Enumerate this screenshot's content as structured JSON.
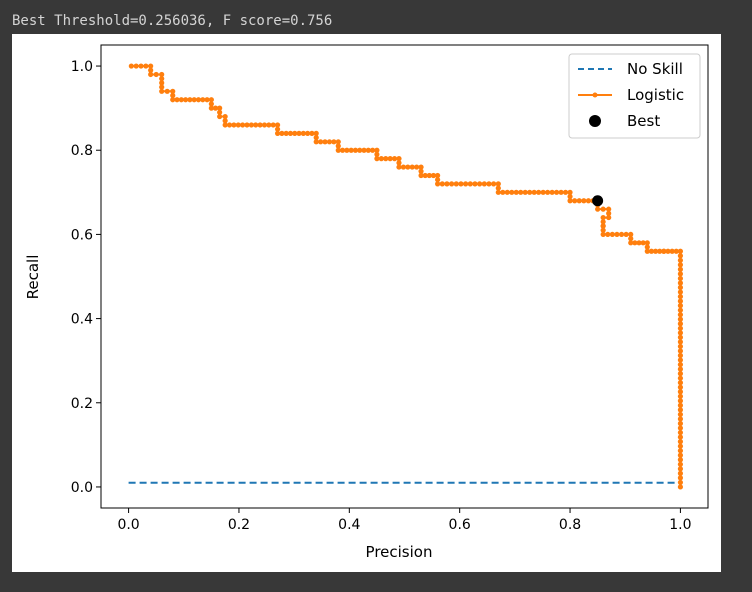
{
  "output_text": "Best Threshold=0.256036, F score=0.756",
  "chart_data": {
    "type": "line",
    "xlabel": "Precision",
    "ylabel": "Recall",
    "xlim": [
      -0.05,
      1.05
    ],
    "ylim": [
      -0.05,
      1.05
    ],
    "x_ticks": [
      "0.0",
      "0.2",
      "0.4",
      "0.6",
      "0.8",
      "1.0"
    ],
    "y_ticks": [
      "0.0",
      "0.2",
      "0.4",
      "0.6",
      "0.8",
      "1.0"
    ],
    "legend_position": "top-right",
    "series": [
      {
        "name": "No Skill",
        "style": "dashed",
        "color": "#1f77b4",
        "x": [
          0,
          1
        ],
        "y": [
          0.01,
          0.01
        ]
      },
      {
        "name": "Logistic",
        "style": "line-marker",
        "color": "#ff7f0e",
        "x": [
          0.005,
          0.04,
          0.04,
          0.06,
          0.06,
          0.08,
          0.08,
          0.15,
          0.15,
          0.165,
          0.165,
          0.175,
          0.175,
          0.27,
          0.27,
          0.34,
          0.34,
          0.38,
          0.38,
          0.45,
          0.45,
          0.49,
          0.49,
          0.53,
          0.53,
          0.56,
          0.56,
          0.67,
          0.67,
          0.8,
          0.8,
          0.85,
          0.85,
          0.87,
          0.87,
          0.86,
          0.86,
          0.86,
          0.86,
          0.91,
          0.91,
          0.94,
          0.94,
          0.97,
          0.97,
          1.0,
          1.0
        ],
        "y": [
          1.0,
          1.0,
          0.98,
          0.98,
          0.94,
          0.94,
          0.92,
          0.92,
          0.9,
          0.9,
          0.88,
          0.88,
          0.86,
          0.86,
          0.84,
          0.84,
          0.82,
          0.82,
          0.8,
          0.8,
          0.78,
          0.78,
          0.76,
          0.76,
          0.74,
          0.74,
          0.72,
          0.72,
          0.7,
          0.7,
          0.68,
          0.68,
          0.66,
          0.66,
          0.64,
          0.64,
          0.62,
          0.62,
          0.6,
          0.6,
          0.58,
          0.58,
          0.56,
          0.56,
          0.56,
          0.56,
          0.0
        ]
      },
      {
        "name": "Best",
        "style": "marker",
        "color": "#000000",
        "x": [
          0.85
        ],
        "y": [
          0.68
        ]
      }
    ]
  }
}
